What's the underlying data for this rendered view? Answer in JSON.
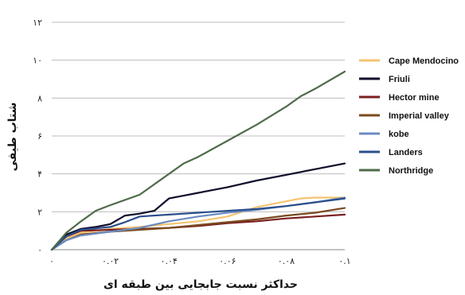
{
  "chart_data": {
    "type": "line",
    "title": "",
    "xlabel": "حداکثر نسبت جابجایی بین طبقه ای",
    "ylabel": "شتاب طیفی",
    "xlim": [
      0,
      0.1
    ],
    "ylim": [
      0,
      12
    ],
    "x_ticks": [
      0,
      0.02,
      0.04,
      0.06,
      0.08,
      0.1
    ],
    "x_tick_labels": [
      "۰",
      "۰.۰۲",
      "۰.۰۴",
      "۰.۰۶",
      "۰.۰۸",
      "۰.۱"
    ],
    "y_ticks": [
      0,
      2,
      4,
      6,
      8,
      10,
      12
    ],
    "y_tick_labels": [
      "۰",
      "۲",
      "۴",
      "۶",
      "۸",
      "۱۰",
      "۱۲"
    ],
    "grid": "horizontal",
    "legend_position": "right",
    "series": [
      {
        "name": "Cape Mendocino",
        "color": "#F5C372",
        "x": [
          0,
          0.005,
          0.01,
          0.02,
          0.03,
          0.04,
          0.05,
          0.06,
          0.065,
          0.07,
          0.08,
          0.085,
          0.09,
          0.1
        ],
        "y": [
          0,
          0.6,
          0.9,
          1.1,
          1.2,
          1.35,
          1.5,
          1.75,
          2.0,
          2.25,
          2.55,
          2.7,
          2.75,
          2.75
        ]
      },
      {
        "name": "Friuli",
        "color": "#0D0D2B",
        "x": [
          0,
          0.005,
          0.01,
          0.015,
          0.02,
          0.025,
          0.03,
          0.035,
          0.04,
          0.045,
          0.05,
          0.06,
          0.07,
          0.08,
          0.09,
          0.1
        ],
        "y": [
          0,
          0.8,
          1.1,
          1.2,
          1.35,
          1.8,
          1.9,
          2.05,
          2.7,
          2.85,
          3.0,
          3.3,
          3.65,
          3.95,
          4.25,
          4.55
        ]
      },
      {
        "name": "Hector mine",
        "color": "#7A1F1F",
        "x": [
          0,
          0.005,
          0.01,
          0.02,
          0.03,
          0.04,
          0.05,
          0.06,
          0.07,
          0.08,
          0.09,
          0.1
        ],
        "y": [
          0,
          0.7,
          1.0,
          1.05,
          1.1,
          1.15,
          1.25,
          1.4,
          1.5,
          1.65,
          1.75,
          1.85
        ]
      },
      {
        "name": "Imperial valley",
        "color": "#7B4A1E",
        "x": [
          0,
          0.005,
          0.01,
          0.02,
          0.03,
          0.04,
          0.05,
          0.06,
          0.07,
          0.08,
          0.09,
          0.1
        ],
        "y": [
          0,
          0.5,
          0.8,
          0.95,
          1.05,
          1.15,
          1.3,
          1.45,
          1.6,
          1.8,
          1.95,
          2.2
        ]
      },
      {
        "name": "kobe",
        "color": "#6C8CC0",
        "x": [
          0,
          0.005,
          0.01,
          0.02,
          0.03,
          0.04,
          0.05,
          0.06,
          0.07,
          0.08,
          0.09,
          0.1
        ],
        "y": [
          0,
          0.5,
          0.75,
          0.95,
          1.15,
          1.5,
          1.75,
          1.95,
          2.1,
          2.3,
          2.5,
          2.75
        ]
      },
      {
        "name": "Landers",
        "color": "#2B4F8C",
        "x": [
          0,
          0.005,
          0.01,
          0.02,
          0.025,
          0.03,
          0.04,
          0.05,
          0.06,
          0.07,
          0.08,
          0.09,
          0.1
        ],
        "y": [
          0,
          0.7,
          1.05,
          1.2,
          1.45,
          1.75,
          1.85,
          1.95,
          2.05,
          2.15,
          2.3,
          2.5,
          2.7
        ]
      },
      {
        "name": "Northridge",
        "color": "#4F6B4A",
        "x": [
          0,
          0.005,
          0.01,
          0.015,
          0.02,
          0.03,
          0.04,
          0.045,
          0.05,
          0.06,
          0.07,
          0.08,
          0.085,
          0.09,
          0.1
        ],
        "y": [
          0,
          0.9,
          1.5,
          2.05,
          2.35,
          2.9,
          4.0,
          4.55,
          4.9,
          5.75,
          6.6,
          7.55,
          8.1,
          8.5,
          9.4
        ]
      }
    ]
  }
}
